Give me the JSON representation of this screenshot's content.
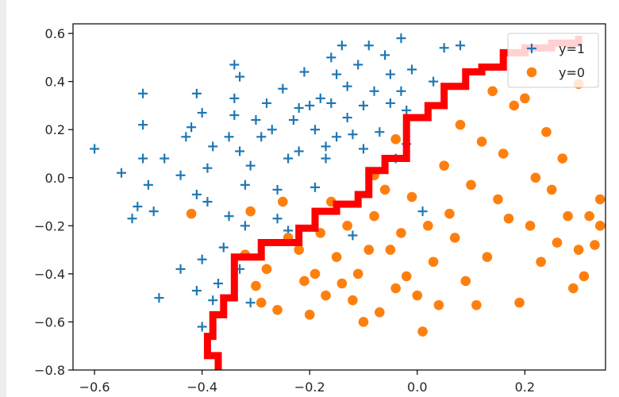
{
  "chart_data": {
    "type": "scatter",
    "title": "",
    "xlabel": "",
    "ylabel": "",
    "xlim": [
      -0.64,
      0.35
    ],
    "ylim": [
      -0.8,
      0.64
    ],
    "xticks": [
      "−0.6",
      "−0.4",
      "−0.2",
      "0.0",
      "0.2"
    ],
    "xtick_values": [
      -0.6,
      -0.4,
      -0.2,
      0.0,
      0.2
    ],
    "yticks": [
      "0.6",
      "0.4",
      "0.2",
      "0.0",
      "−0.2",
      "−0.4",
      "−0.6",
      "−0.8"
    ],
    "ytick_values": [
      0.6,
      0.4,
      0.2,
      0.0,
      -0.2,
      -0.4,
      -0.6,
      -0.8
    ],
    "grid": false,
    "legend_position": "top-right",
    "series": [
      {
        "name": "y=1",
        "marker": "plus",
        "color": "#1f77b4",
        "points": [
          [
            -0.6,
            0.12
          ],
          [
            -0.55,
            0.02
          ],
          [
            -0.53,
            -0.17
          ],
          [
            -0.52,
            -0.12
          ],
          [
            -0.51,
            0.08
          ],
          [
            -0.51,
            0.22
          ],
          [
            -0.51,
            0.35
          ],
          [
            -0.5,
            -0.03
          ],
          [
            -0.49,
            -0.14
          ],
          [
            -0.48,
            -0.5
          ],
          [
            -0.47,
            0.08
          ],
          [
            -0.44,
            0.01
          ],
          [
            -0.44,
            -0.38
          ],
          [
            -0.43,
            0.17
          ],
          [
            -0.42,
            0.21
          ],
          [
            -0.41,
            0.35
          ],
          [
            -0.41,
            -0.07
          ],
          [
            -0.41,
            -0.47
          ],
          [
            -0.4,
            0.27
          ],
          [
            -0.4,
            -0.34
          ],
          [
            -0.4,
            -0.62
          ],
          [
            -0.39,
            0.04
          ],
          [
            -0.39,
            -0.1
          ],
          [
            -0.38,
            0.13
          ],
          [
            -0.38,
            -0.51
          ],
          [
            -0.37,
            -0.44
          ],
          [
            -0.36,
            -0.29
          ],
          [
            -0.35,
            0.17
          ],
          [
            -0.35,
            -0.16
          ],
          [
            -0.34,
            0.47
          ],
          [
            -0.34,
            0.33
          ],
          [
            -0.34,
            0.26
          ],
          [
            -0.33,
            0.42
          ],
          [
            -0.33,
            0.11
          ],
          [
            -0.33,
            -0.38
          ],
          [
            -0.32,
            -0.03
          ],
          [
            -0.32,
            -0.2
          ],
          [
            -0.31,
            0.05
          ],
          [
            -0.31,
            -0.52
          ],
          [
            -0.3,
            0.24
          ],
          [
            -0.29,
            0.17
          ],
          [
            -0.28,
            0.31
          ],
          [
            -0.27,
            0.2
          ],
          [
            -0.26,
            -0.05
          ],
          [
            -0.26,
            -0.17
          ],
          [
            -0.25,
            0.37
          ],
          [
            -0.24,
            0.08
          ],
          [
            -0.24,
            -0.22
          ],
          [
            -0.23,
            0.24
          ],
          [
            -0.22,
            0.29
          ],
          [
            -0.22,
            0.11
          ],
          [
            -0.21,
            0.44
          ],
          [
            -0.2,
            0.3
          ],
          [
            -0.19,
            0.2
          ],
          [
            -0.19,
            -0.04
          ],
          [
            -0.18,
            0.33
          ],
          [
            -0.17,
            0.08
          ],
          [
            -0.17,
            0.13
          ],
          [
            -0.16,
            0.5
          ],
          [
            -0.16,
            0.31
          ],
          [
            -0.15,
            0.43
          ],
          [
            -0.15,
            0.17
          ],
          [
            -0.14,
            0.55
          ],
          [
            -0.13,
            0.38
          ],
          [
            -0.13,
            0.25
          ],
          [
            -0.12,
            0.18
          ],
          [
            -0.12,
            -0.24
          ],
          [
            -0.11,
            0.47
          ],
          [
            -0.1,
            0.3
          ],
          [
            -0.1,
            0.12
          ],
          [
            -0.09,
            0.55
          ],
          [
            -0.08,
            0.36
          ],
          [
            -0.08,
            0.02
          ],
          [
            -0.07,
            0.19
          ],
          [
            -0.06,
            0.51
          ],
          [
            -0.05,
            0.43
          ],
          [
            -0.05,
            0.31
          ],
          [
            -0.04,
            0.08
          ],
          [
            -0.03,
            0.58
          ],
          [
            -0.03,
            0.36
          ],
          [
            -0.02,
            0.28
          ],
          [
            -0.02,
            0.14
          ],
          [
            -0.01,
            0.45
          ],
          [
            0.01,
            -0.14
          ],
          [
            0.03,
            0.4
          ],
          [
            0.05,
            0.54
          ],
          [
            0.08,
            0.55
          ]
        ]
      },
      {
        "name": "y=0",
        "marker": "circle",
        "color": "#ff7f0e",
        "points": [
          [
            -0.42,
            -0.15
          ],
          [
            -0.32,
            -0.32
          ],
          [
            -0.31,
            -0.14
          ],
          [
            -0.3,
            -0.45
          ],
          [
            -0.29,
            -0.52
          ],
          [
            -0.28,
            -0.38
          ],
          [
            -0.26,
            -0.55
          ],
          [
            -0.25,
            -0.1
          ],
          [
            -0.24,
            -0.25
          ],
          [
            -0.22,
            -0.3
          ],
          [
            -0.21,
            -0.43
          ],
          [
            -0.2,
            -0.57
          ],
          [
            -0.19,
            -0.4
          ],
          [
            -0.18,
            -0.23
          ],
          [
            -0.17,
            -0.49
          ],
          [
            -0.16,
            -0.1
          ],
          [
            -0.15,
            -0.33
          ],
          [
            -0.14,
            -0.44
          ],
          [
            -0.13,
            -0.2
          ],
          [
            -0.12,
            -0.51
          ],
          [
            -0.11,
            -0.4
          ],
          [
            -0.1,
            -0.6
          ],
          [
            -0.09,
            -0.3
          ],
          [
            -0.08,
            0.01
          ],
          [
            -0.08,
            -0.16
          ],
          [
            -0.07,
            -0.56
          ],
          [
            -0.06,
            -0.05
          ],
          [
            -0.05,
            -0.3
          ],
          [
            -0.04,
            0.16
          ],
          [
            -0.04,
            -0.46
          ],
          [
            -0.03,
            -0.23
          ],
          [
            -0.02,
            -0.41
          ],
          [
            -0.01,
            -0.08
          ],
          [
            0.0,
            -0.49
          ],
          [
            0.01,
            -0.64
          ],
          [
            0.02,
            -0.2
          ],
          [
            0.03,
            -0.35
          ],
          [
            0.04,
            -0.53
          ],
          [
            0.05,
            0.05
          ],
          [
            0.06,
            -0.15
          ],
          [
            0.07,
            -0.25
          ],
          [
            0.08,
            0.22
          ],
          [
            0.09,
            -0.43
          ],
          [
            0.1,
            -0.03
          ],
          [
            0.11,
            -0.53
          ],
          [
            0.12,
            0.15
          ],
          [
            0.13,
            -0.33
          ],
          [
            0.14,
            0.36
          ],
          [
            0.15,
            -0.09
          ],
          [
            0.16,
            0.1
          ],
          [
            0.17,
            -0.17
          ],
          [
            0.18,
            0.3
          ],
          [
            0.19,
            -0.52
          ],
          [
            0.2,
            0.33
          ],
          [
            0.21,
            -0.2
          ],
          [
            0.22,
            0.0
          ],
          [
            0.23,
            -0.35
          ],
          [
            0.24,
            0.19
          ],
          [
            0.25,
            -0.05
          ],
          [
            0.26,
            -0.27
          ],
          [
            0.27,
            0.08
          ],
          [
            0.28,
            -0.16
          ],
          [
            0.29,
            -0.46
          ],
          [
            0.3,
            -0.3
          ],
          [
            0.3,
            0.39
          ],
          [
            0.31,
            -0.41
          ],
          [
            0.32,
            -0.16
          ],
          [
            0.33,
            -0.28
          ],
          [
            0.34,
            -0.2
          ],
          [
            0.34,
            -0.09
          ]
        ]
      }
    ],
    "decision_boundary": {
      "color": "#ff0000",
      "points": [
        [
          -0.34,
          -0.82
        ],
        [
          -0.37,
          -0.74
        ],
        [
          -0.39,
          -0.66
        ],
        [
          -0.38,
          -0.57
        ],
        [
          -0.36,
          -0.5
        ],
        [
          -0.34,
          -0.48
        ],
        [
          -0.34,
          -0.33
        ],
        [
          -0.29,
          -0.27
        ],
        [
          -0.22,
          -0.21
        ],
        [
          -0.19,
          -0.14
        ],
        [
          -0.15,
          -0.11
        ],
        [
          -0.11,
          -0.07
        ],
        [
          -0.09,
          0.03
        ],
        [
          -0.06,
          0.08
        ],
        [
          -0.02,
          0.1
        ],
        [
          -0.02,
          0.25
        ],
        [
          0.02,
          0.3
        ],
        [
          0.05,
          0.38
        ],
        [
          0.09,
          0.44
        ],
        [
          0.12,
          0.46
        ],
        [
          0.16,
          0.52
        ],
        [
          0.2,
          0.54
        ],
        [
          0.25,
          0.56
        ],
        [
          0.3,
          0.59
        ]
      ]
    }
  }
}
